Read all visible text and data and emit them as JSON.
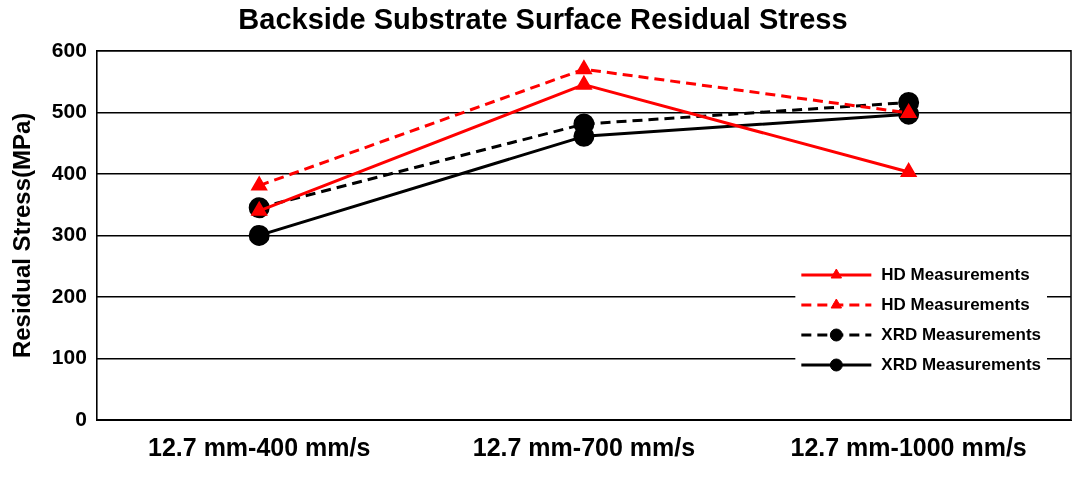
{
  "chart_data": {
    "type": "line",
    "title": "Backside Substrate Surface Residual Stress",
    "ylabel": "Residual Stress(MPa)",
    "categories": [
      "12.7 mm-400 mm/s",
      "12.7 mm-700 mm/s",
      "12.7 mm-1000 mm/s"
    ],
    "series": [
      {
        "name": "HD Measurements",
        "color": "#ff0000",
        "values": [
          340,
          545,
          403
        ],
        "marker": "triangle",
        "line_style": "solid"
      },
      {
        "name": "HD Measurements",
        "color": "#ff0000",
        "values": [
          381,
          570,
          499
        ],
        "marker": "triangle",
        "line_style": "dashed"
      },
      {
        "name": "XRD Measurements",
        "color": "#000000",
        "values": [
          345,
          481,
          516
        ],
        "marker": "circle",
        "line_style": "dashed"
      },
      {
        "name": "XRD Measurements",
        "color": "#000000",
        "values": [
          300,
          461,
          497
        ],
        "marker": "circle",
        "line_style": "solid"
      }
    ],
    "ylim": [
      0,
      600
    ],
    "yticks": [
      0,
      100,
      200,
      300,
      400,
      500,
      600
    ],
    "grid": "y",
    "legend": "right"
  }
}
